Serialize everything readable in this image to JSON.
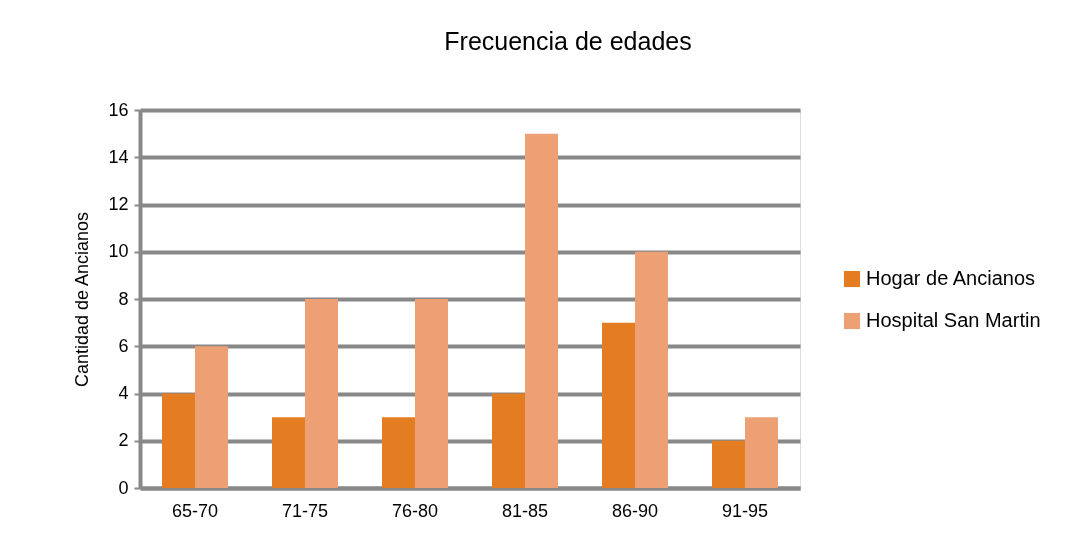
{
  "chart_data": {
    "type": "bar",
    "title": "Frecuencia de edades",
    "ylabel": "Cantidad de Ancianos",
    "categories": [
      "65-70",
      "71-75",
      "76-80",
      "81-85",
      "86-90",
      "91-95"
    ],
    "series": [
      {
        "name": "Hogar de Ancianos",
        "color": "#e47c22",
        "values": [
          4,
          3,
          3,
          4,
          7,
          2
        ]
      },
      {
        "name": "Hospital San Martin",
        "color": "#eda074",
        "values": [
          6,
          8,
          8,
          15,
          10,
          3
        ]
      }
    ],
    "ylim": [
      0,
      16
    ],
    "yticks": [
      0,
      2,
      4,
      6,
      8,
      10,
      12,
      14,
      16
    ],
    "grid": "y",
    "legend": "right"
  }
}
